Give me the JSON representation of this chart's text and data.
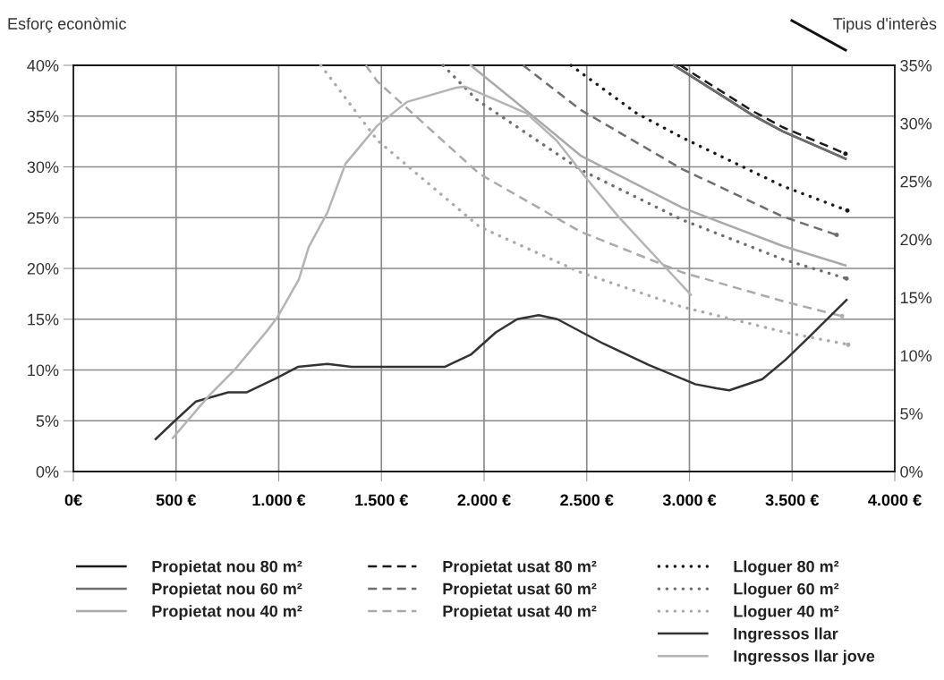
{
  "chart_data": {
    "type": "line",
    "xlabel": null,
    "ylabel": "Esforç econòmic",
    "y2label": "Tipus d'interès",
    "xlim": [
      0,
      4000
    ],
    "xticks": [
      {
        "value": 0,
        "label": "0€"
      },
      {
        "value": 500,
        "label": "500 €"
      },
      {
        "value": 1000,
        "label": "1.000 €"
      },
      {
        "value": 1500,
        "label": "1.500 €"
      },
      {
        "value": 2000,
        "label": "2.000 €"
      },
      {
        "value": 2500,
        "label": "2.500 €"
      },
      {
        "value": 3000,
        "label": "3.000 €"
      },
      {
        "value": 3500,
        "label": "3.500 €"
      },
      {
        "value": 4000,
        "label": "4.000 €"
      }
    ],
    "ylim": [
      0,
      40
    ],
    "yticks": [
      {
        "value": 0,
        "label": "0%"
      },
      {
        "value": 5,
        "label": "5%"
      },
      {
        "value": 10,
        "label": "10%"
      },
      {
        "value": 15,
        "label": "15%"
      },
      {
        "value": 20,
        "label": "20%"
      },
      {
        "value": 25,
        "label": "25%"
      },
      {
        "value": 30,
        "label": "30%"
      },
      {
        "value": 35,
        "label": "35%"
      },
      {
        "value": 40,
        "label": "40%"
      }
    ],
    "y2lim": [
      0,
      35
    ],
    "y2ticks": [
      {
        "value": 0,
        "label": "0%"
      },
      {
        "value": 5,
        "label": "5%"
      },
      {
        "value": 10,
        "label": "10%"
      },
      {
        "value": 15,
        "label": "15%"
      },
      {
        "value": 20,
        "label": "20%"
      },
      {
        "value": 25,
        "label": "25%"
      },
      {
        "value": 30,
        "label": "30%"
      },
      {
        "value": 35,
        "label": "35%"
      }
    ],
    "grid": true,
    "legend": "bottom",
    "marker": "none",
    "series": [
      {
        "name": "Propietat nou 80 m²",
        "color": "#1a1a1a",
        "line_style": "solid",
        "x": [
          2925,
          3307,
          3455,
          3760
        ],
        "values": [
          40.0,
          35.1,
          33.5,
          30.8
        ]
      },
      {
        "name": "Propietat nou 60 m²",
        "color": "#6e6e6e",
        "line_style": "solid",
        "x": [
          2925,
          3307,
          3455,
          3760
        ],
        "values": [
          40.0,
          35.1,
          33.5,
          30.8
        ]
      },
      {
        "name": "Propietat nou 40 m²",
        "color": "#aaaaaa",
        "line_style": "solid",
        "x": [
          1935,
          2148,
          2471,
          2963,
          3455,
          3760
        ],
        "values": [
          40.0,
          36.5,
          31.1,
          26.0,
          22.2,
          20.3
        ]
      },
      {
        "name": "Propietat usat 80 m²",
        "color": "#1a1a1a",
        "line_style": "dashed",
        "x": [
          2955,
          3307,
          3455,
          3760
        ],
        "values": [
          40.0,
          35.5,
          33.9,
          31.3
        ]
      },
      {
        "name": "Propietat usat 60 m²",
        "color": "#6e6e6e",
        "line_style": "dashed",
        "x": [
          2190,
          2471,
          2963,
          3455,
          3717
        ],
        "values": [
          40.0,
          35.6,
          29.8,
          25.1,
          23.3
        ]
      },
      {
        "name": "Propietat usat 40 m²",
        "color": "#aaaaaa",
        "line_style": "dashed",
        "x": [
          1424,
          1481,
          1978,
          2471,
          2967,
          3468,
          3743
        ],
        "values": [
          40.0,
          38.4,
          29.3,
          23.6,
          19.6,
          16.7,
          15.3
        ]
      },
      {
        "name": "Lloguer 80 m²",
        "color": "#1a1a1a",
        "line_style": "dotted",
        "x": [
          2423,
          2741,
          2963,
          3455,
          3769
        ],
        "values": [
          40.0,
          35.3,
          32.9,
          28.1,
          25.7
        ]
      },
      {
        "name": "Lloguer 60 m²",
        "color": "#6e6e6e",
        "line_style": "dotted",
        "x": [
          1800,
          1965,
          2471,
          2963,
          3455,
          3765
        ],
        "values": [
          40.0,
          36.6,
          29.7,
          24.8,
          20.9,
          19.0
        ]
      },
      {
        "name": "Lloguer 40 m²",
        "color": "#aaaaaa",
        "line_style": "dotted",
        "x": [
          1205,
          1481,
          1978,
          2471,
          2967,
          3468,
          3773
        ],
        "values": [
          40.0,
          32.6,
          24.1,
          19.6,
          16.2,
          13.7,
          12.5
        ]
      },
      {
        "name": "Ingressos llar",
        "color": "#333333",
        "line_style": "solid",
        "x": [
          401,
          484,
          597,
          754,
          845,
          989,
          1093,
          1237,
          1355,
          1808,
          1935,
          2057,
          2161,
          2266,
          2357,
          2580,
          2802,
          3028,
          3133,
          3194,
          3355,
          3468,
          3595,
          3765
        ],
        "values": [
          3.2,
          4.8,
          6.9,
          7.8,
          7.8,
          9.2,
          10.3,
          10.6,
          10.3,
          10.3,
          11.5,
          13.7,
          15.0,
          15.4,
          15.0,
          12.6,
          10.5,
          8.6,
          8.2,
          8.0,
          9.1,
          11.0,
          13.5,
          16.9
        ]
      },
      {
        "name": "Ingressos llar jove",
        "color": "#b4b4b4",
        "line_style": "solid",
        "x": [
          484,
          662,
          784,
          941,
          994,
          1098,
          1146,
          1237,
          1325,
          1477,
          1625,
          1865,
          1908,
          2205,
          2353,
          2505,
          2654,
          3007
        ],
        "values": [
          3.3,
          7.5,
          10.0,
          13.8,
          15.2,
          18.9,
          22.1,
          25.5,
          30.3,
          34.0,
          36.4,
          37.8,
          37.9,
          35.3,
          32.6,
          28.7,
          25.1,
          17.4
        ]
      }
    ]
  }
}
